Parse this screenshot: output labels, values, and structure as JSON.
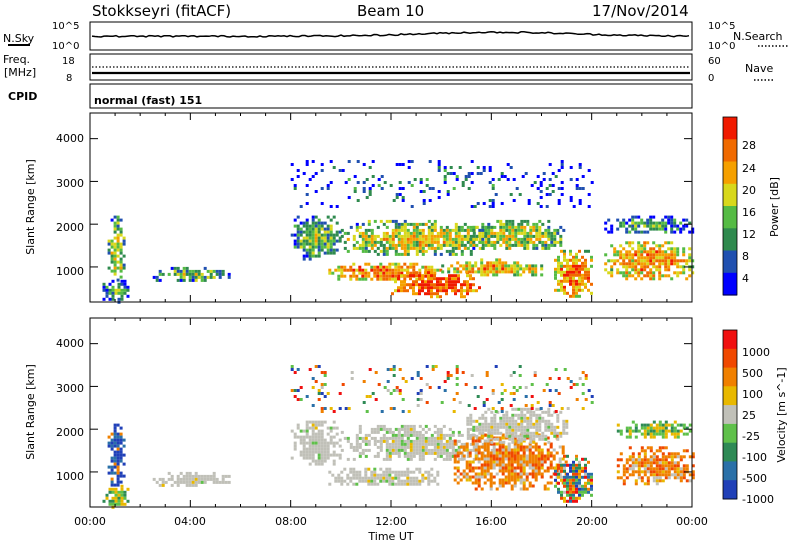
{
  "header": {
    "station": "Stokkseyri (fitACF)",
    "beam": "Beam 10",
    "date": "17/Nov/2014"
  },
  "noise_panel": {
    "left_label": "N.Sky",
    "right_label": "N.Search",
    "ticks_left": [
      "10^5",
      "10^0"
    ],
    "ticks_right": [
      "10^5",
      "10^0"
    ]
  },
  "freq_panel": {
    "left_label_line1": "Freq.",
    "left_label_line2": "[MHz]",
    "right_label": "Nave",
    "ticks_left": [
      "18",
      "8"
    ],
    "ticks_right": [
      "60",
      "0"
    ]
  },
  "cpid": {
    "label": "CPID",
    "value": "normal (fast) 151"
  },
  "time_axis": {
    "label": "Time UT",
    "ticks": [
      "00:00",
      "04:00",
      "08:00",
      "12:00",
      "16:00",
      "20:00",
      "00:00"
    ]
  },
  "colors": {
    "power_scale": [
      "#0000ff",
      "#2050b0",
      "#2f8a4e",
      "#55bb44",
      "#d8d81c",
      "#f5a000",
      "#f06a00",
      "#f01a00"
    ],
    "velocity_scale": [
      "#2040b8",
      "#2a70a8",
      "#2e8a55",
      "#5fc04a",
      "#c0c0b8",
      "#e8b800",
      "#f08000",
      "#f04800",
      "#f01010"
    ]
  },
  "chart_data": [
    {
      "type": "heatmap",
      "panel": "power",
      "xlabel": "Time UT",
      "ylabel": "Slant Range [km]",
      "xlim": [
        0,
        24
      ],
      "ylim": [
        180,
        4600
      ],
      "yticks": [
        "1000",
        "2000",
        "3000",
        "4000"
      ],
      "colorbar": {
        "label": "Power [dB]",
        "ticks": [
          "28",
          "24",
          "20",
          "16",
          "12",
          "8",
          "4"
        ],
        "range": [
          0,
          32
        ]
      },
      "regions": [
        {
          "t": [
            0.7,
            1.3
          ],
          "r": [
            700,
            2200
          ],
          "level": 0.55
        },
        {
          "t": [
            0.5,
            1.5
          ],
          "r": [
            200,
            700
          ],
          "level": 0.35
        },
        {
          "t": [
            2.5,
            5.5
          ],
          "r": [
            700,
            1000
          ],
          "level": 0.45
        },
        {
          "t": [
            8.0,
            10.0
          ],
          "r": [
            1200,
            2200
          ],
          "level": 0.45
        },
        {
          "t": [
            9.5,
            14.0
          ],
          "r": [
            700,
            1100
          ],
          "level": 0.8
        },
        {
          "t": [
            10.0,
            16.0
          ],
          "r": [
            1300,
            2100
          ],
          "level": 0.6
        },
        {
          "t": [
            12.0,
            15.5
          ],
          "r": [
            300,
            900
          ],
          "level": 0.95
        },
        {
          "t": [
            14.0,
            18.0
          ],
          "r": [
            800,
            1200
          ],
          "level": 0.7
        },
        {
          "t": [
            15.0,
            19.0
          ],
          "r": [
            1400,
            2100
          ],
          "level": 0.55
        },
        {
          "t": [
            18.5,
            20.0
          ],
          "r": [
            300,
            1400
          ],
          "level": 0.8
        },
        {
          "t": [
            20.5,
            24.0
          ],
          "r": [
            700,
            1600
          ],
          "level": 0.75
        },
        {
          "t": [
            20.5,
            24.0
          ],
          "r": [
            1800,
            2200
          ],
          "level": 0.35
        },
        {
          "t": [
            8.0,
            20.0
          ],
          "r": [
            2400,
            3500
          ],
          "level": 0.25
        }
      ]
    },
    {
      "type": "heatmap",
      "panel": "velocity",
      "xlabel": "Time UT",
      "ylabel": "Slant Range [km]",
      "xlim": [
        0,
        24
      ],
      "ylim": [
        180,
        4600
      ],
      "yticks": [
        "1000",
        "2000",
        "3000",
        "4000"
      ],
      "colorbar": {
        "label": "Velocity [m s^-1]",
        "ticks": [
          "1000",
          "500",
          "100",
          "25",
          "-25",
          "-100",
          "-500",
          "-1000"
        ]
      },
      "regions": [
        {
          "t": [
            0.7,
            1.3
          ],
          "r": [
            700,
            2200
          ],
          "kind": "blue"
        },
        {
          "t": [
            0.5,
            1.5
          ],
          "r": [
            200,
            700
          ],
          "kind": "green"
        },
        {
          "t": [
            2.5,
            5.5
          ],
          "r": [
            700,
            1000
          ],
          "kind": "grey"
        },
        {
          "t": [
            8.0,
            10.0
          ],
          "r": [
            1200,
            2200
          ],
          "kind": "grey"
        },
        {
          "t": [
            9.5,
            14.0
          ],
          "r": [
            700,
            1100
          ],
          "kind": "grey"
        },
        {
          "t": [
            10.0,
            16.0
          ],
          "r": [
            1300,
            2100
          ],
          "kind": "grey"
        },
        {
          "t": [
            14.5,
            19.0
          ],
          "r": [
            600,
            1900
          ],
          "kind": "orange"
        },
        {
          "t": [
            15.0,
            19.0
          ],
          "r": [
            1700,
            2500
          ],
          "kind": "grey"
        },
        {
          "t": [
            18.5,
            20.0
          ],
          "r": [
            300,
            1400
          ],
          "kind": "mix"
        },
        {
          "t": [
            21.0,
            24.0
          ],
          "r": [
            700,
            1600
          ],
          "kind": "orange"
        },
        {
          "t": [
            21.0,
            24.0
          ],
          "r": [
            1800,
            2200
          ],
          "kind": "green"
        },
        {
          "t": [
            8.0,
            20.0
          ],
          "r": [
            2400,
            3500
          ],
          "kind": "sparse"
        }
      ]
    }
  ]
}
